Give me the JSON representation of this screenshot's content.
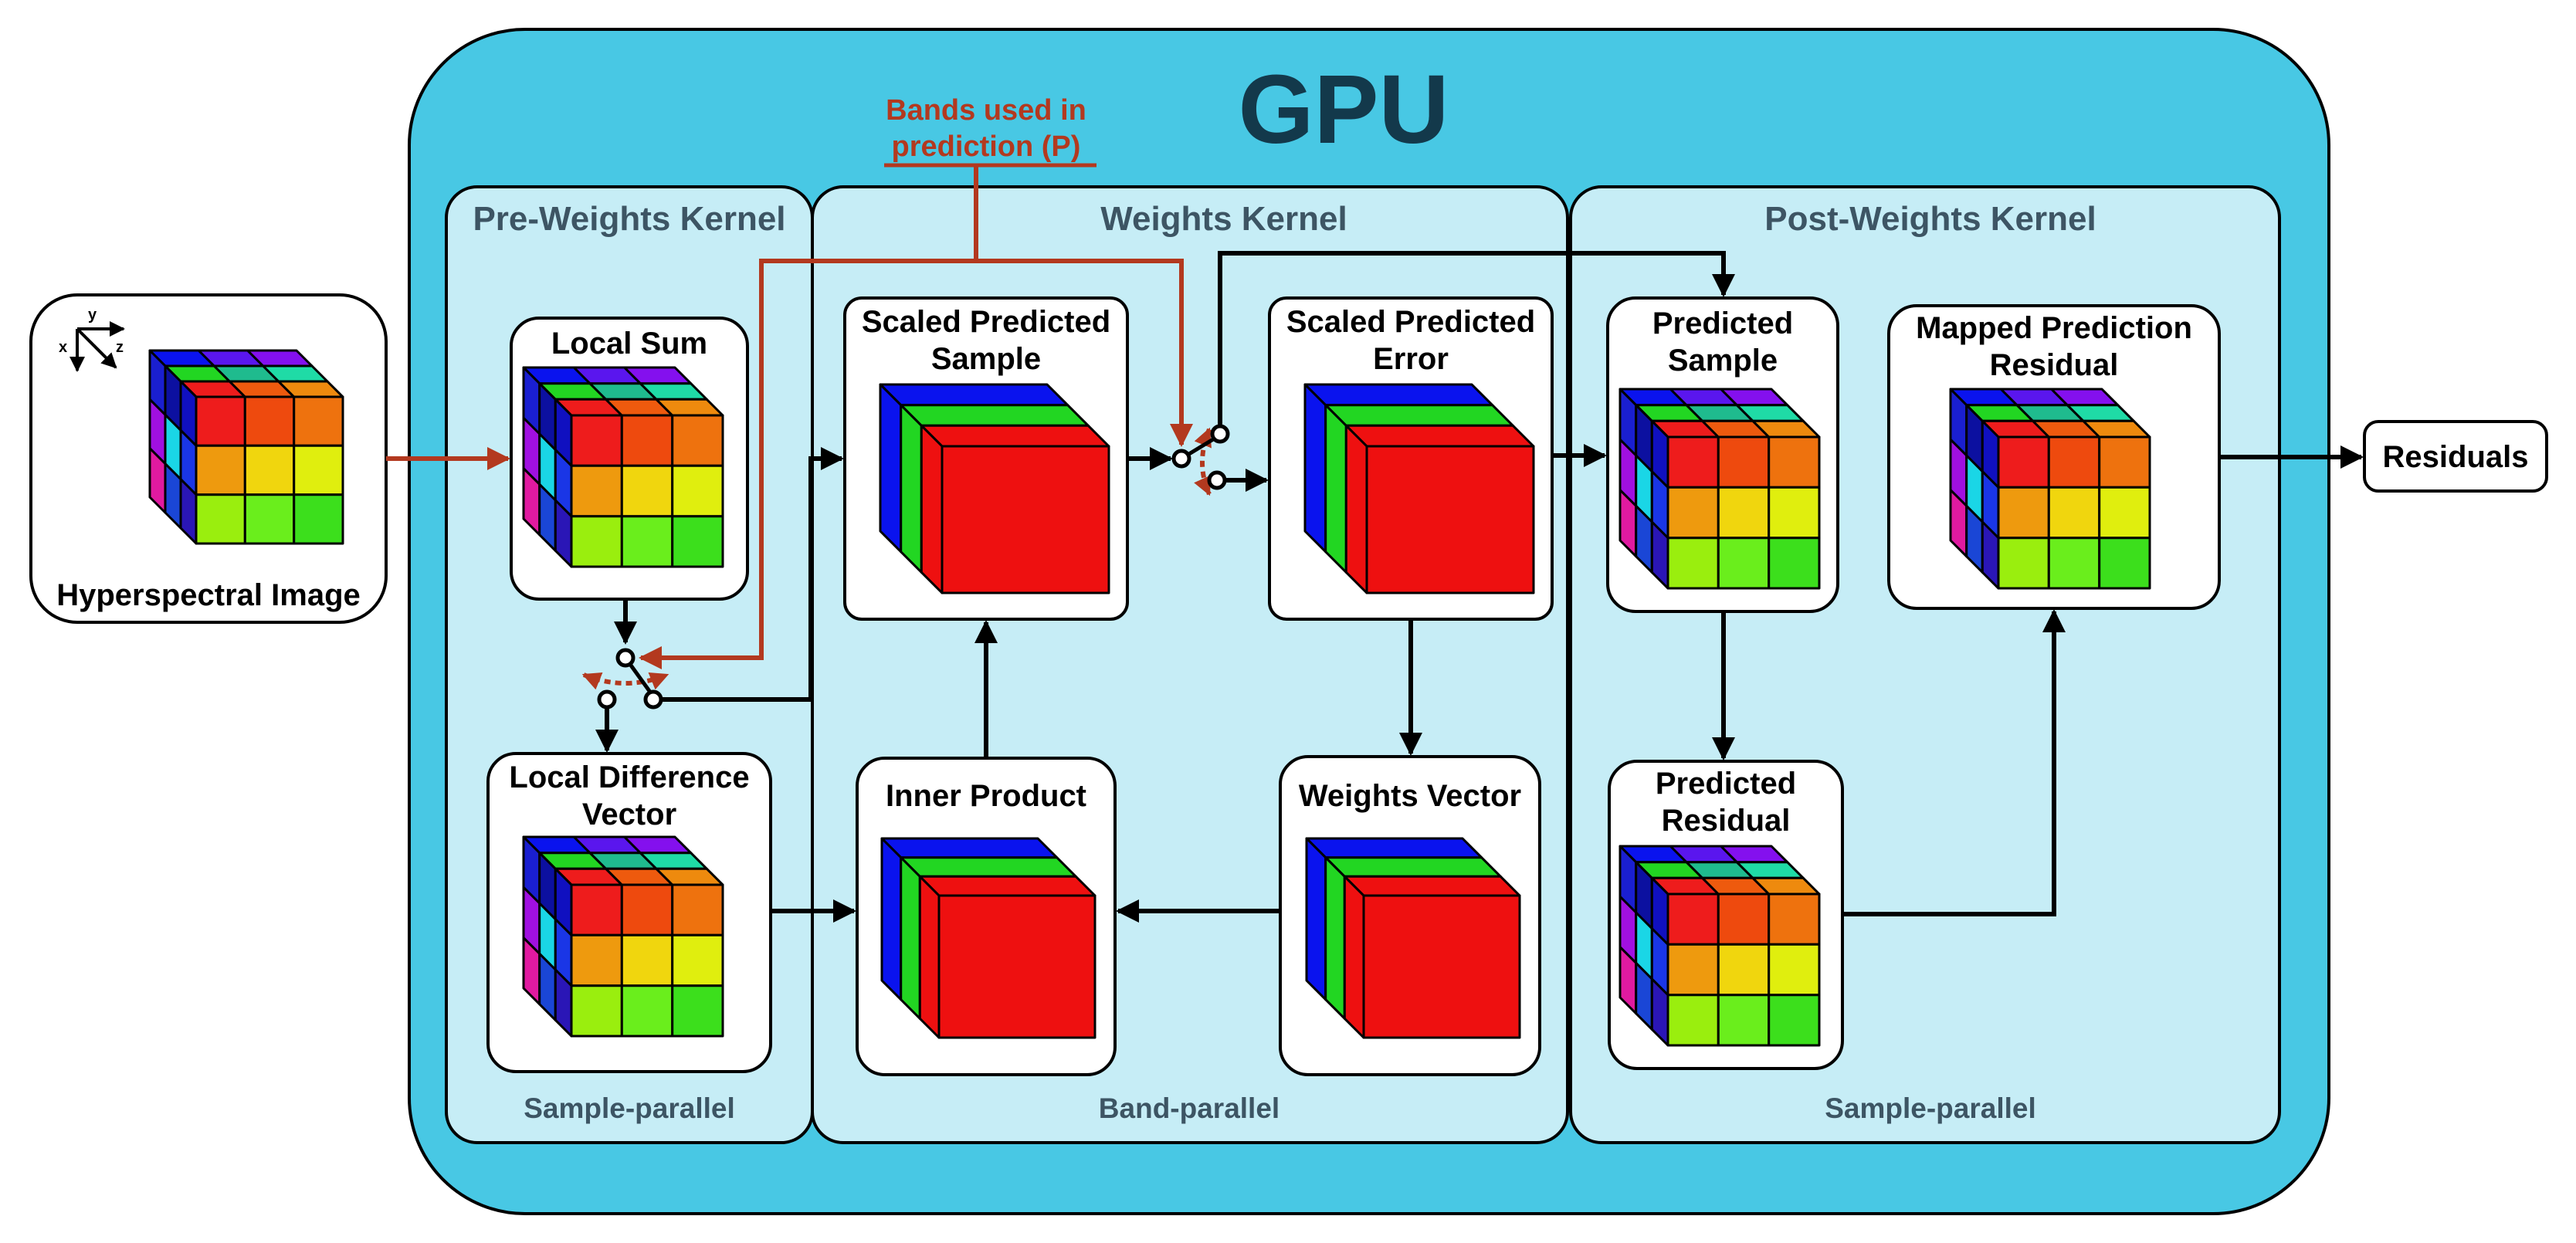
{
  "title": "GPU",
  "annotation": {
    "bands_label_line1": "Bands used in",
    "bands_label_line2": "prediction (P)"
  },
  "input": {
    "label": "Hyperspectral Image",
    "axes": {
      "x": "x",
      "y": "y",
      "z": "z"
    }
  },
  "output": {
    "label": "Residuals"
  },
  "kernels": {
    "pre": {
      "title": "Pre-Weights Kernel",
      "mode": "Sample-parallel"
    },
    "weights": {
      "title": "Weights Kernel",
      "mode": "Band-parallel"
    },
    "post": {
      "title": "Post-Weights Kernel",
      "mode": "Sample-parallel"
    }
  },
  "blocks": {
    "local_sum": {
      "line1": "Local Sum"
    },
    "local_diff": {
      "line1": "Local Difference",
      "line2": "Vector"
    },
    "scaled_sample": {
      "line1": "Scaled Predicted",
      "line2": "Sample"
    },
    "scaled_error": {
      "line1": "Scaled Predicted",
      "line2": "Error"
    },
    "inner_product": {
      "line1": "Inner Product"
    },
    "weights_vector": {
      "line1": "Weights Vector"
    },
    "predicted_sample": {
      "line1": "Predicted",
      "line2": "Sample"
    },
    "mapped_residual": {
      "line1": "Mapped Prediction",
      "line2": "Residual"
    },
    "predicted_residual": {
      "line1": "Predicted",
      "line2": "Residual"
    }
  },
  "colors": {
    "gpu_fill": "#48c8e4",
    "kernel_fill": "#c6edf6",
    "accent_red": "#b3391f",
    "title_dark": "#13394b",
    "cube_top": [
      "#0a13ee",
      "#5a16ee",
      "#8410ee",
      "#22d622",
      "#1fbb8e",
      "#1fdba6",
      "#ee1c1c",
      "#ee5a0e",
      "#ee8a0e"
    ],
    "cube_front": [
      "#ee1c1c",
      "#ee4a0e",
      "#ee720e",
      "#ee9a0e",
      "#f0d60e",
      "#e0ee0e",
      "#9aee0e",
      "#6aee1c",
      "#3cdf1c"
    ],
    "cube_side": [
      "#1a1fd0",
      "#0c10a0",
      "#1010c0",
      "#a010e0",
      "#1ad6e6",
      "#1a36e6",
      "#e01aa0",
      "#1a46d6",
      "#2a16b6"
    ]
  }
}
